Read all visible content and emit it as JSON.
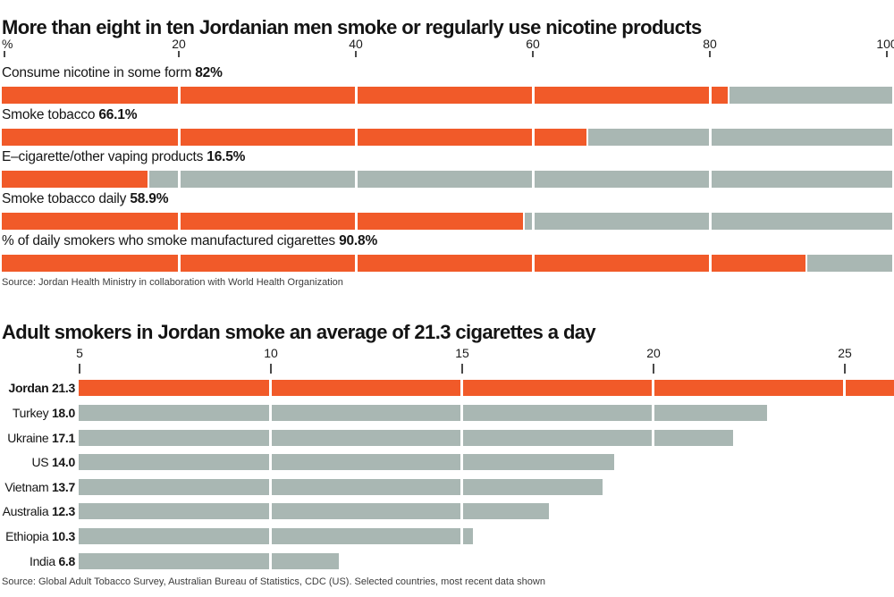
{
  "colors": {
    "orange": "#f15a29",
    "gray": "#a9b7b3",
    "text": "#161616",
    "tick": "#4a4a4a",
    "source_text": "#3c3c3c",
    "background": "#ffffff"
  },
  "chart_data": [
    {
      "type": "bar",
      "orientation": "horizontal",
      "title": "More than eight in ten Jordanian men smoke or regularly use nicotine products",
      "axis": {
        "tick_labels": [
          "%",
          "20",
          "40",
          "60",
          "80",
          "100"
        ],
        "tick_values": [
          0,
          20,
          40,
          60,
          80,
          100
        ],
        "xlim": [
          0,
          100.6
        ],
        "grid": "white divider lines inside bars at 20/40/60/80"
      },
      "categories": [
        "Consume nicotine in some form",
        "Smoke tobacco",
        "E–cigarette/other vaping products",
        "Smoke tobacco daily",
        "% of daily smokers who smoke manufactured cigarettes"
      ],
      "values": [
        82,
        66.1,
        16.5,
        58.9,
        90.8
      ],
      "value_labels": [
        "82%",
        "66.1%",
        "16.5%",
        "58.9%",
        "90.8%"
      ],
      "bar_color": "#f15a29",
      "track_color": "#a9b7b3",
      "source": "Source: Jordan Health Ministry in collaboration with World Health Organization"
    },
    {
      "type": "bar",
      "orientation": "horizontal",
      "title": "Adult smokers in Jordan smoke an average of 21.3 cigarettes a day",
      "axis": {
        "tick_labels": [
          "5",
          "10",
          "15",
          "20",
          "25"
        ],
        "tick_bar_scale_positions": [
          0,
          5,
          10,
          15,
          20
        ],
        "xlim": [
          0,
          21.3
        ],
        "note": "tick labels are offset +5 relative to the bar-length scale in the original graphic",
        "grid": "white divider lines inside bars at tick positions"
      },
      "categories": [
        "Jordan",
        "Turkey",
        "Ukraine",
        "US",
        "Vietnam",
        "Australia",
        "Ethiopia",
        "India"
      ],
      "values": [
        21.3,
        18.0,
        17.1,
        14.0,
        13.7,
        12.3,
        10.3,
        6.8
      ],
      "value_labels": [
        "21.3",
        "18.0",
        "17.1",
        "14.0",
        "13.7",
        "12.3",
        "10.3",
        "6.8"
      ],
      "highlight_category": "Jordan",
      "highlight_color": "#f15a29",
      "bar_color": "#a9b7b3",
      "source": "Source: Global Adult Tobacco Survey, Australian Bureau of Statistics, CDC (US). Selected countries, most recent data shown"
    }
  ]
}
